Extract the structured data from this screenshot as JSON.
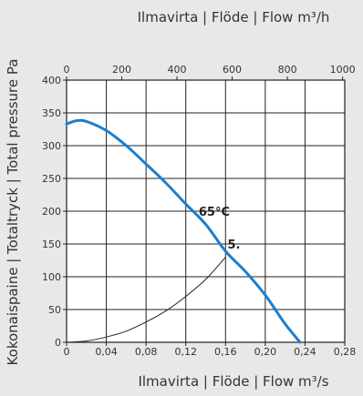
{
  "chart_data": {
    "type": "line",
    "title_top": "Ilmavirta | Flöde | Flow m³/h",
    "xlabel": "Ilmavirta | Flöde | Flow m³/s",
    "ylabel": "Kokonaispaine | Totaltryck | Total pressure Pa",
    "x_top_ticks": [
      "0",
      "200",
      "400",
      "600",
      "800",
      "1000"
    ],
    "x_bottom_ticks": [
      "0",
      "0,04",
      "0,08",
      "0,12",
      "0,16",
      "0,20",
      "0,24",
      "0,28"
    ],
    "y_ticks": [
      "0",
      "50",
      "100",
      "150",
      "200",
      "250",
      "300",
      "350",
      "400"
    ],
    "xlim": [
      0,
      0.28
    ],
    "ylim": [
      0,
      400
    ],
    "x_top_lim": [
      0,
      1000
    ],
    "grid": true,
    "annotations": [
      {
        "text": "65°C",
        "x": 0.133,
        "y": 193
      },
      {
        "text": "5.",
        "x": 0.162,
        "y": 143
      }
    ],
    "series": [
      {
        "color": "#1a7fd0",
        "x": [
          0,
          0.01,
          0.02,
          0.04,
          0.06,
          0.08,
          0.1,
          0.12,
          0.14,
          0.16,
          0.18,
          0.2,
          0.22,
          0.235
        ],
        "y": [
          333,
          338,
          337,
          323,
          300,
          272,
          243,
          211,
          180,
          139,
          108,
          72,
          28,
          0
        ]
      },
      {
        "color": "#222222",
        "x": [
          0,
          0.02,
          0.04,
          0.06,
          0.08,
          0.1,
          0.12,
          0.14,
          0.16
        ],
        "y": [
          0,
          2,
          8,
          17,
          31,
          48,
          70,
          96,
          130
        ]
      }
    ]
  }
}
